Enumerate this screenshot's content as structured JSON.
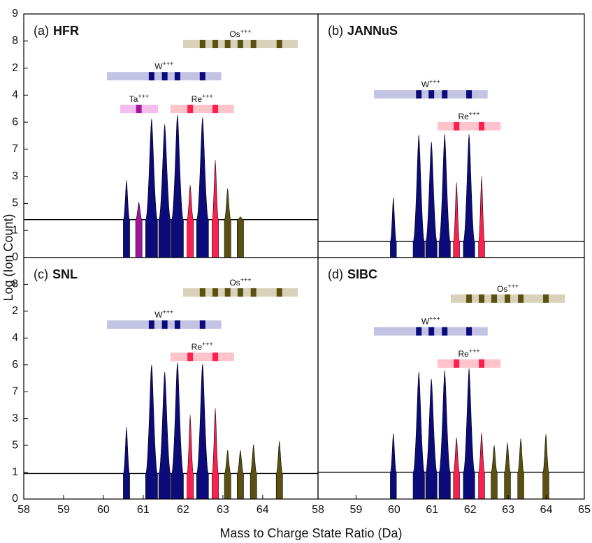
{
  "figure": {
    "xlabel": "Mass to Charge State Ratio (Da)",
    "ylabel": "Log (Ion Count)"
  },
  "chart_data": [
    {
      "type": "spectrum",
      "panel_label": "(a)",
      "panel_name": "HFR",
      "xlim": [
        58,
        65.39
      ],
      "ylim": [
        0,
        9
      ],
      "yticks": [
        0,
        1,
        {
          "value": 2,
          "label": "5"
        },
        3,
        {
          "value": 4,
          "label": "7"
        },
        {
          "value": 5,
          "label": "6"
        },
        {
          "value": 6,
          "label": "4"
        },
        {
          "value": 7,
          "label": "2"
        },
        8,
        9
      ],
      "baseline": 1.4,
      "peaks": [
        {
          "color": "#0b0b7c",
          "x": [
            60.58,
            61.21,
            61.54,
            61.86,
            62.49
          ],
          "values": [
            2.86,
            5.13,
            4.92,
            5.26,
            5.18
          ]
        },
        {
          "color": "#a0179a",
          "x": [
            60.89
          ],
          "values": [
            2.04
          ]
        },
        {
          "color": "#ff1f4f",
          "x": [
            62.18,
            62.81
          ],
          "values": [
            2.68,
            3.61
          ]
        },
        {
          "color": "#5a5010",
          "x": [
            63.12,
            63.44
          ],
          "values": [
            2.55,
            1.5
          ]
        }
      ],
      "ion_bars": [
        {
          "ion": "Os",
          "charge": "+++",
          "xrange": [
            62.0,
            64.88
          ],
          "y": 7.89,
          "marks": [
            62.49,
            62.81,
            63.12,
            63.44,
            63.77,
            64.42
          ],
          "color": "#d9d2ba",
          "mark_color": "#5a5010"
        },
        {
          "ion": "W",
          "charge": "+++",
          "xrange": [
            60.09,
            62.96
          ],
          "y": 6.7,
          "marks": [
            61.21,
            61.54,
            61.86,
            62.49
          ],
          "color": "#c3c3e3",
          "mark_color": "#0b0b7c"
        },
        {
          "ion": "Ta",
          "charge": "+++",
          "xrange": [
            60.42,
            61.37
          ],
          "y": 5.49,
          "marks": [
            60.89
          ],
          "color": "#f3bcec",
          "mark_color": "#a0179a"
        },
        {
          "ion": "Re",
          "charge": "+++",
          "xrange": [
            61.68,
            63.28
          ],
          "y": 5.49,
          "marks": [
            62.18,
            62.81
          ],
          "color": "#ffc3cb",
          "mark_color": "#ff1f4f"
        }
      ]
    },
    {
      "type": "spectrum",
      "panel_label": "(b)",
      "panel_name": "JANNuS",
      "xlim": [
        58,
        65
      ],
      "ylim": [
        0,
        9
      ],
      "baseline": 0.6,
      "peaks": [
        {
          "color": "#0b0b7c",
          "x": [
            59.98,
            60.65,
            60.98,
            61.33,
            61.97
          ],
          "values": [
            2.22,
            4.54,
            4.28,
            4.56,
            4.56
          ]
        },
        {
          "color": "#ff1f4f",
          "x": [
            61.64,
            62.3
          ],
          "values": [
            2.78,
            3.0
          ]
        }
      ],
      "ion_bars": [
        {
          "ion": "W",
          "charge": "+++",
          "xrange": [
            59.47,
            62.46
          ],
          "y": 6.03,
          "marks": [
            60.65,
            60.98,
            61.33,
            61.97
          ],
          "color": "#c3c3e3",
          "mark_color": "#0b0b7c"
        },
        {
          "ion": "Re",
          "charge": "+++",
          "xrange": [
            61.14,
            62.8
          ],
          "y": 4.85,
          "marks": [
            61.64,
            62.3
          ],
          "color": "#ffc3cb",
          "mark_color": "#ff1f4f"
        }
      ]
    },
    {
      "type": "spectrum",
      "panel_label": "(c)",
      "panel_name": "SNL",
      "xlim": [
        58,
        65.39
      ],
      "ylim": [
        0,
        9
      ],
      "xticks": [
        58,
        59,
        60,
        61,
        62,
        63,
        64
      ],
      "yticks": [
        0,
        1,
        {
          "value": 2,
          "label": "5"
        },
        3,
        {
          "value": 4,
          "label": "7"
        },
        {
          "value": 5,
          "label": "6"
        },
        {
          "value": 6,
          "label": "4"
        },
        {
          "value": 7,
          "label": "2"
        },
        8
      ],
      "baseline": 0.95,
      "peaks": [
        {
          "color": "#0b0b7c",
          "x": [
            60.58,
            61.21,
            61.54,
            61.86,
            62.49
          ],
          "values": [
            2.68,
            5.0,
            4.74,
            5.08,
            5.03
          ]
        },
        {
          "color": "#ff1f4f",
          "x": [
            62.18,
            62.81
          ],
          "values": [
            3.13,
            3.39
          ]
        },
        {
          "color": "#5a5010",
          "x": [
            63.12,
            63.44,
            63.77,
            64.42
          ],
          "values": [
            1.82,
            1.82,
            2.03,
            2.16
          ]
        }
      ],
      "ion_bars": [
        {
          "ion": "Os",
          "charge": "+++",
          "xrange": [
            62.0,
            64.88
          ],
          "y": 7.7,
          "marks": [
            62.49,
            62.81,
            63.12,
            63.44,
            63.77,
            64.42
          ],
          "color": "#d9d2ba",
          "mark_color": "#5a5010"
        },
        {
          "ion": "W",
          "charge": "+++",
          "xrange": [
            60.09,
            62.96
          ],
          "y": 6.5,
          "marks": [
            61.21,
            61.54,
            61.86,
            62.49
          ],
          "color": "#c3c3e3",
          "mark_color": "#0b0b7c"
        },
        {
          "ion": "Re",
          "charge": "+++",
          "xrange": [
            61.68,
            63.28
          ],
          "y": 5.3,
          "marks": [
            62.18,
            62.81
          ],
          "color": "#ffc3cb",
          "mark_color": "#ff1f4f"
        }
      ]
    },
    {
      "type": "spectrum",
      "panel_label": "(d)",
      "panel_name": "SIBC",
      "xlim": [
        58,
        65
      ],
      "ylim": [
        0,
        9
      ],
      "xticks": [
        58,
        59,
        60,
        61,
        62,
        63,
        64,
        65
      ],
      "baseline": 1.0,
      "peaks": [
        {
          "color": "#0b0b7c",
          "x": [
            59.98,
            60.65,
            60.98,
            61.33,
            61.97
          ],
          "values": [
            2.45,
            4.74,
            4.48,
            4.79,
            4.87
          ]
        },
        {
          "color": "#ff1f4f",
          "x": [
            61.64,
            62.3
          ],
          "values": [
            2.29,
            2.47
          ]
        },
        {
          "color": "#5a5010",
          "x": [
            62.63,
            62.98,
            63.33,
            63.99
          ],
          "values": [
            2.0,
            2.1,
            2.26,
            2.42
          ]
        }
      ],
      "ion_bars": [
        {
          "ion": "Os",
          "charge": "+++",
          "xrange": [
            61.49,
            64.49
          ],
          "y": 7.47,
          "marks": [
            61.97,
            62.3,
            62.63,
            62.98,
            63.33,
            63.99
          ],
          "color": "#d9d2ba",
          "mark_color": "#5a5010"
        },
        {
          "ion": "W",
          "charge": "+++",
          "xrange": [
            59.47,
            62.46
          ],
          "y": 6.25,
          "marks": [
            60.65,
            60.98,
            61.33,
            61.97
          ],
          "color": "#c3c3e3",
          "mark_color": "#0b0b7c"
        },
        {
          "ion": "Re",
          "charge": "+++",
          "xrange": [
            61.14,
            62.8
          ],
          "y": 5.05,
          "marks": [
            61.64,
            62.3
          ],
          "color": "#ffc3cb",
          "mark_color": "#ff1f4f"
        }
      ]
    }
  ]
}
